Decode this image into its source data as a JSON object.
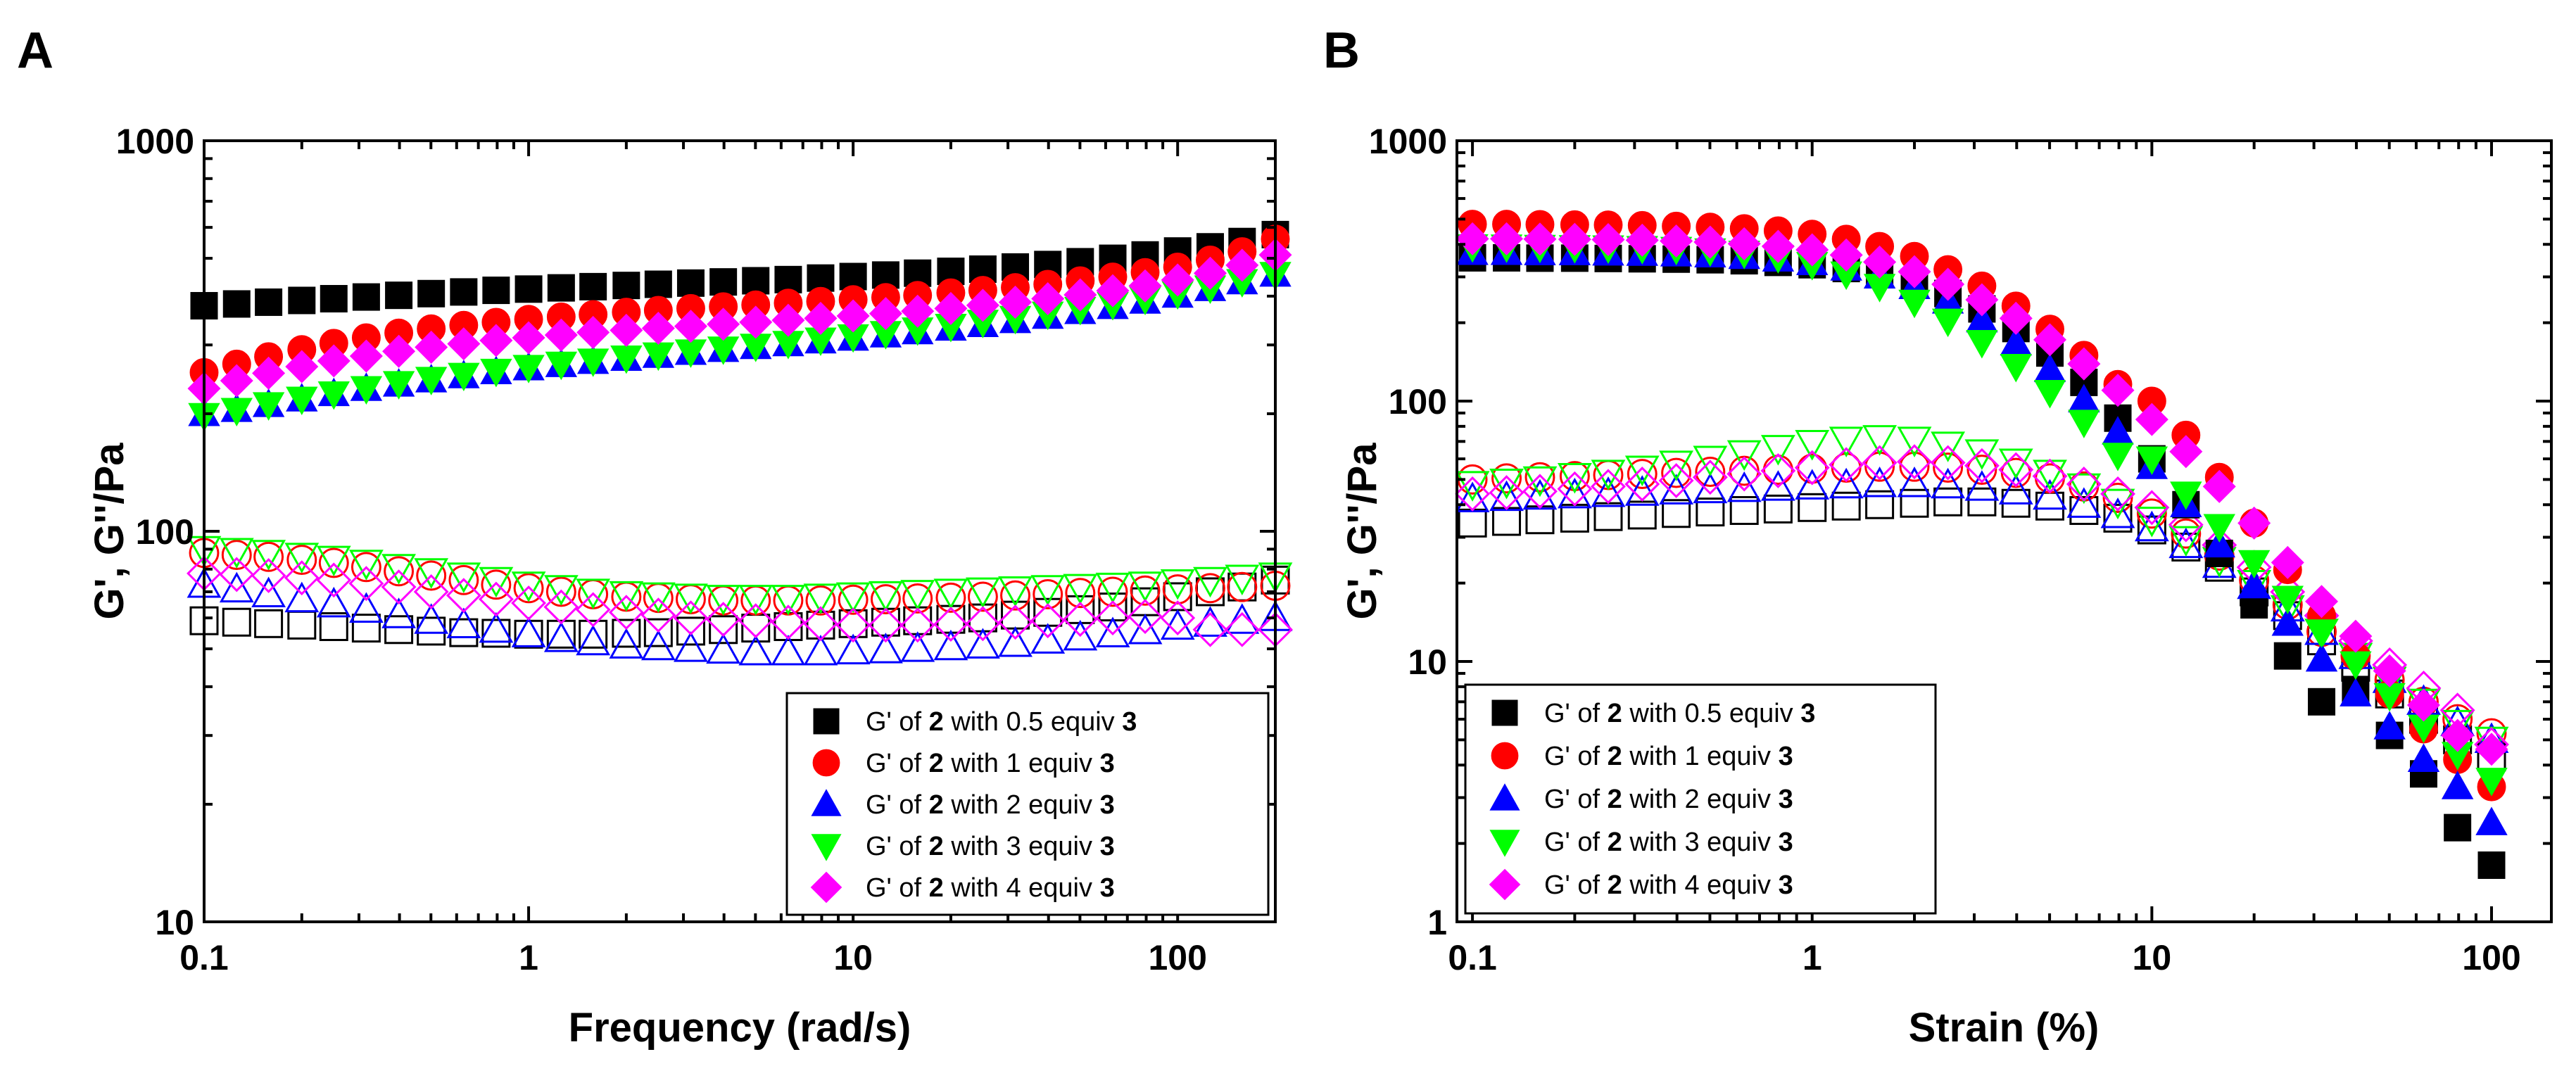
{
  "colors": {
    "0.5": "#000000",
    "1": "#ff0000",
    "2": "#0000ff",
    "3": "#00ff00",
    "4": "#ff00ff"
  },
  "chart_data": [
    {
      "panel": "A",
      "type": "scatter",
      "xscale": "log",
      "yscale": "log",
      "xlim": [
        0.1,
        200
      ],
      "ylim": [
        10,
        1000
      ],
      "xlabel": "Frequency (rad/s)",
      "ylabel": "G', G''/Pa",
      "xticks": [
        0.1,
        1,
        10,
        100
      ],
      "xtick_labels": [
        "0.1",
        "1",
        "10",
        "100"
      ],
      "yticks": [
        10,
        100,
        1000
      ],
      "ytick_labels": [
        "10",
        "100",
        "1000"
      ],
      "legend": {
        "placement": "bottom-right",
        "entries": [
          {
            "key": "0.5",
            "marker": "square",
            "prefix": "G' of ",
            "bold1": "2",
            "mid": " with 0.5 equiv ",
            "bold2": "3"
          },
          {
            "key": "1",
            "marker": "circle",
            "prefix": "G' of ",
            "bold1": "2",
            "mid": " with 1 equiv ",
            "bold2": "3"
          },
          {
            "key": "2",
            "marker": "triangle-up",
            "prefix": "G' of ",
            "bold1": "2",
            "mid": " with 2 equiv ",
            "bold2": "3"
          },
          {
            "key": "3",
            "marker": "triangle-down",
            "prefix": "G' of ",
            "bold1": "2",
            "mid": " with 3 equiv ",
            "bold2": "3"
          },
          {
            "key": "4",
            "marker": "diamond",
            "prefix": "G' of ",
            "bold1": "2",
            "mid": " with 4 equiv ",
            "bold2": "3"
          }
        ]
      },
      "x": [
        0.1,
        0.126,
        0.158,
        0.2,
        0.251,
        0.316,
        0.398,
        0.501,
        0.631,
        0.794,
        1,
        1.26,
        1.58,
        2,
        2.51,
        3.16,
        3.98,
        5.01,
        6.31,
        7.94,
        10,
        12.6,
        15.8,
        20,
        25.1,
        31.6,
        39.8,
        50.1,
        63.1,
        79.4,
        100,
        126,
        158,
        200
      ],
      "series": [
        {
          "key": "0.5",
          "modulus": "G'",
          "marker": "square",
          "filled": true,
          "values": [
            378,
            382,
            386,
            390,
            394,
            398,
            402,
            406,
            410,
            414,
            417,
            420,
            423,
            426,
            429,
            432,
            435,
            438,
            441,
            445,
            449,
            453,
            458,
            463,
            469,
            475,
            482,
            490,
            500,
            510,
            522,
            535,
            552,
            575
          ]
        },
        {
          "key": "1",
          "modulus": "G'",
          "marker": "circle",
          "filled": true,
          "values": [
            255,
            268,
            280,
            292,
            303,
            313,
            322,
            330,
            337,
            343,
            349,
            354,
            359,
            364,
            368,
            372,
            376,
            380,
            384,
            388,
            392,
            397,
            402,
            408,
            414,
            421,
            429,
            438,
            448,
            460,
            475,
            495,
            520,
            560
          ]
        },
        {
          "key": "2",
          "modulus": "G'",
          "marker": "triangle-up",
          "filled": true,
          "values": [
            200,
            205,
            211,
            218,
            225,
            232,
            238,
            244,
            250,
            256,
            262,
            267,
            272,
            277,
            282,
            287,
            292,
            297,
            302,
            307,
            312,
            318,
            324,
            331,
            338,
            346,
            355,
            365,
            376,
            388,
            402,
            418,
            435,
            455
          ]
        },
        {
          "key": "3",
          "modulus": "G'",
          "marker": "triangle-down",
          "filled": true,
          "values": [
            198,
            204,
            211,
            218,
            225,
            232,
            239,
            245,
            251,
            257,
            263,
            268,
            273,
            278,
            283,
            288,
            293,
            298,
            303,
            309,
            315,
            321,
            328,
            335,
            343,
            351,
            360,
            370,
            381,
            393,
            406,
            420,
            436,
            455
          ]
        },
        {
          "key": "4",
          "modulus": "G'",
          "marker": "diamond",
          "filled": true,
          "values": [
            232,
            243,
            254,
            264,
            273,
            281,
            289,
            296,
            302,
            308,
            313,
            318,
            323,
            327,
            331,
            335,
            339,
            343,
            347,
            351,
            356,
            361,
            366,
            372,
            379,
            386,
            394,
            403,
            413,
            425,
            440,
            458,
            480,
            510
          ]
        },
        {
          "key": "0.5",
          "modulus": "G''",
          "marker": "square",
          "filled": false,
          "values": [
            59,
            58.5,
            58,
            57.5,
            57,
            56.5,
            56,
            55.5,
            55,
            54.8,
            54.5,
            54.5,
            54.5,
            54.8,
            55,
            55.5,
            56,
            56.5,
            57,
            57.5,
            58,
            58.5,
            59,
            59.5,
            60,
            61,
            62,
            63,
            64,
            66,
            68,
            70,
            72,
            75
          ]
        },
        {
          "key": "1",
          "modulus": "G''",
          "marker": "circle",
          "filled": false,
          "values": [
            88,
            87,
            86,
            84.5,
            83,
            81,
            79,
            77,
            75,
            73,
            71.5,
            70,
            69,
            68,
            67.5,
            67,
            66.5,
            66.5,
            66.5,
            66.5,
            66.8,
            67,
            67.3,
            67.6,
            68,
            68.5,
            69,
            69.5,
            70,
            70.5,
            71,
            71.5,
            72,
            72.5
          ]
        },
        {
          "key": "2",
          "modulus": "G''",
          "marker": "triangle-up",
          "filled": false,
          "values": [
            73,
            71,
            69,
            67,
            65,
            63,
            61,
            59,
            57.5,
            56,
            54.5,
            53,
            52,
            51,
            50.5,
            50,
            49.5,
            49,
            49,
            49,
            49.3,
            49.6,
            50,
            50.5,
            51,
            51.5,
            52.5,
            53.5,
            54.5,
            55.5,
            57,
            58,
            59,
            60
          ]
        },
        {
          "key": "3",
          "modulus": "G''",
          "marker": "triangle-down",
          "filled": false,
          "values": [
            90,
            89,
            88,
            86.5,
            85,
            83,
            81,
            79,
            77,
            75,
            73,
            71.5,
            70,
            69,
            68.5,
            68,
            67.5,
            67.5,
            67.5,
            68,
            68.5,
            69,
            69.5,
            70,
            70.5,
            71,
            71.5,
            72,
            72.5,
            73,
            74,
            75,
            76,
            77
          ]
        },
        {
          "key": "4",
          "modulus": "G''",
          "marker": "diamond",
          "filled": false,
          "values": [
            78,
            77.5,
            77,
            76,
            75,
            73.5,
            72,
            70,
            68.5,
            67,
            65.5,
            64,
            63,
            62,
            61,
            60,
            59.5,
            59,
            58.5,
            58,
            57.5,
            57.5,
            57.5,
            57.8,
            58,
            58.5,
            59,
            59.5,
            60,
            60.5,
            60,
            56,
            56,
            56
          ]
        }
      ]
    },
    {
      "panel": "B",
      "type": "scatter",
      "xscale": "log",
      "yscale": "log",
      "xlim": [
        0.09,
        150
      ],
      "ylim": [
        1,
        1000
      ],
      "xlabel": "Strain (%)",
      "ylabel": "G', G''/Pa",
      "xticks": [
        0.1,
        1,
        10,
        100
      ],
      "xtick_labels": [
        "0.1",
        "1",
        "10",
        "100"
      ],
      "yticks": [
        1,
        10,
        100,
        1000
      ],
      "ytick_labels": [
        "1",
        "10",
        "100",
        "1000"
      ],
      "legend": {
        "placement": "bottom-left",
        "entries": [
          {
            "key": "0.5",
            "marker": "square",
            "prefix": "G' of ",
            "bold1": "2",
            "mid": " with 0.5 equiv ",
            "bold2": "3"
          },
          {
            "key": "1",
            "marker": "circle",
            "prefix": "G' of ",
            "bold1": "2",
            "mid": " with 1 equiv ",
            "bold2": "3"
          },
          {
            "key": "2",
            "marker": "triangle-up",
            "prefix": "G' of ",
            "bold1": "2",
            "mid": " with 2 equiv ",
            "bold2": "3"
          },
          {
            "key": "3",
            "marker": "triangle-down",
            "prefix": "G' of ",
            "bold1": "2",
            "mid": " with 3 equiv ",
            "bold2": "3"
          },
          {
            "key": "4",
            "marker": "diamond",
            "prefix": "G' of ",
            "bold1": "2",
            "mid": " with 4 equiv ",
            "bold2": "3"
          }
        ]
      },
      "x": [
        0.1,
        0.126,
        0.158,
        0.2,
        0.251,
        0.316,
        0.398,
        0.501,
        0.631,
        0.794,
        1,
        1.26,
        1.58,
        2,
        2.51,
        3.16,
        3.98,
        5.01,
        6.31,
        7.94,
        10,
        12.6,
        15.8,
        20,
        25.1,
        31.6,
        39.8,
        50.1,
        63.1,
        79.4,
        100
      ],
      "series": [
        {
          "key": "0.5",
          "modulus": "G'",
          "marker": "square",
          "filled": true,
          "values": [
            355,
            355,
            354,
            354,
            353,
            352,
            351,
            349,
            346,
            341,
            334,
            323,
            307,
            286,
            259,
            226,
            190,
            153,
            118,
            86,
            60,
            40,
            26,
            16.5,
            10.5,
            7.0,
            7.8,
            5.2,
            3.7,
            2.3,
            1.65
          ]
        },
        {
          "key": "1",
          "modulus": "G'",
          "marker": "circle",
          "filled": true,
          "values": [
            478,
            478,
            477,
            476,
            475,
            473,
            470,
            466,
            460,
            451,
            438,
            419,
            393,
            360,
            320,
            277,
            232,
            189,
            150,
            116,
            100,
            74,
            51,
            34,
            22.5,
            15,
            10.5,
            7.5,
            5.5,
            4.2,
            3.3
          ]
        },
        {
          "key": "2",
          "modulus": "G'",
          "marker": "triangle-up",
          "filled": true,
          "values": [
            372,
            372,
            371,
            371,
            370,
            369,
            367,
            364,
            359,
            351,
            340,
            324,
            302,
            275,
            242,
            205,
            167,
            132,
            101,
            76,
            56,
            40,
            28,
            19.5,
            14,
            10.2,
            7.5,
            5.6,
            4.2,
            3.3,
            2.4
          ]
        },
        {
          "key": "3",
          "modulus": "G'",
          "marker": "triangle-down",
          "filled": true,
          "values": [
            392,
            391,
            390,
            389,
            388,
            386,
            383,
            378,
            370,
            356,
            335,
            308,
            276,
            240,
            203,
            168,
            136,
            108,
            83,
            62,
            60,
            44,
            33,
            24,
            17.5,
            13,
            9.8,
            7.4,
            5.6,
            4.4,
            3.5
          ]
        },
        {
          "key": "4",
          "modulus": "G'",
          "marker": "diamond",
          "filled": true,
          "values": [
            420,
            420,
            419,
            418,
            417,
            415,
            412,
            408,
            402,
            393,
            381,
            364,
            342,
            314,
            281,
            245,
            208,
            172,
            139,
            110,
            85,
            64,
            47,
            34,
            24,
            17,
            12.5,
            9.2,
            6.8,
            5.2,
            4.6
          ]
        },
        {
          "key": "0.5",
          "modulus": "G''",
          "marker": "square",
          "filled": false,
          "values": [
            34,
            34.5,
            35,
            35.5,
            36,
            36.5,
            37,
            37.5,
            38,
            38.5,
            39,
            39.5,
            40,
            40.5,
            41,
            41,
            40.5,
            39.5,
            38,
            35.5,
            32,
            27.5,
            23,
            18.5,
            15,
            12,
            9.5,
            7.5,
            6,
            5,
            4.3
          ]
        },
        {
          "key": "1",
          "modulus": "G''",
          "marker": "circle",
          "filled": false,
          "values": [
            50,
            50.5,
            51,
            51.5,
            52,
            52.5,
            53,
            53.5,
            54,
            54.5,
            55,
            55.5,
            56,
            56,
            55.5,
            54.5,
            53,
            50.5,
            47,
            42.5,
            37,
            31,
            25.5,
            20.5,
            16.5,
            13,
            10.5,
            8.5,
            7,
            6,
            5.3
          ]
        },
        {
          "key": "2",
          "modulus": "G''",
          "marker": "triangle-up",
          "filled": false,
          "values": [
            42,
            42.5,
            43,
            43.5,
            44,
            44.5,
            45,
            45.5,
            46,
            46.5,
            47,
            47.5,
            48,
            48,
            47.5,
            46.5,
            45,
            43,
            40,
            36.5,
            32.5,
            28,
            23.5,
            19.5,
            16,
            13,
            10.5,
            8.5,
            7,
            5.8,
            5
          ]
        },
        {
          "key": "3",
          "modulus": "G''",
          "marker": "triangle-down",
          "filled": false,
          "values": [
            48,
            49,
            50,
            51.5,
            53,
            55,
            57.5,
            60,
            63,
            66,
            69,
            71,
            72,
            71,
            68,
            63.5,
            58.5,
            53,
            47,
            41,
            35,
            29.5,
            24.5,
            20,
            16,
            13,
            10.5,
            8.5,
            7,
            5.8,
            5
          ]
        },
        {
          "key": "4",
          "modulus": "G''",
          "marker": "diamond",
          "filled": false,
          "values": [
            44,
            44.5,
            45,
            46,
            47,
            48,
            49.5,
            51,
            52.5,
            54,
            55.5,
            57,
            58,
            58.5,
            58,
            56.5,
            54.5,
            51.5,
            48,
            44,
            39,
            33.5,
            28,
            23,
            18.5,
            15,
            12,
            9.7,
            7.9,
            6.5,
            4.8
          ]
        }
      ]
    }
  ]
}
